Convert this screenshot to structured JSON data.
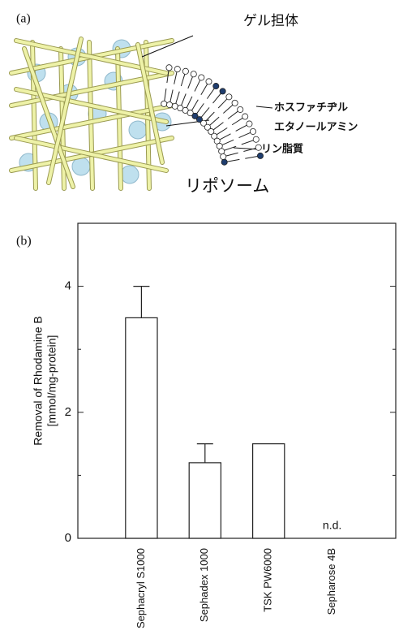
{
  "panel_a": {
    "label": "(a)",
    "gel_label": "ゲル担体",
    "pe_label": [
      "ホスファチヂル",
      "エタノールアミン"
    ],
    "lipid_label": "リン脂質",
    "liposome_label": "リポソーム"
  },
  "panel_b": {
    "label": "(b)"
  },
  "chart_data": {
    "type": "bar",
    "ylabel": [
      "Removal of Rhodamine B",
      "[mmol/mg-protein]"
    ],
    "categories": [
      "Sephacryl S1000",
      "Sephadex 1000",
      "TSK PW6000",
      "Sepharose 4B"
    ],
    "values": [
      3.5,
      1.2,
      1.5,
      null
    ],
    "errors": [
      0.5,
      0.3,
      null,
      null
    ],
    "value_labels": [
      null,
      null,
      null,
      "n.d."
    ],
    "color": "#ffffff",
    "ylim": [
      0,
      5
    ],
    "yticks": [
      0,
      2,
      4
    ],
    "minor_yticks": [
      1,
      3,
      5
    ],
    "grid": false
  }
}
